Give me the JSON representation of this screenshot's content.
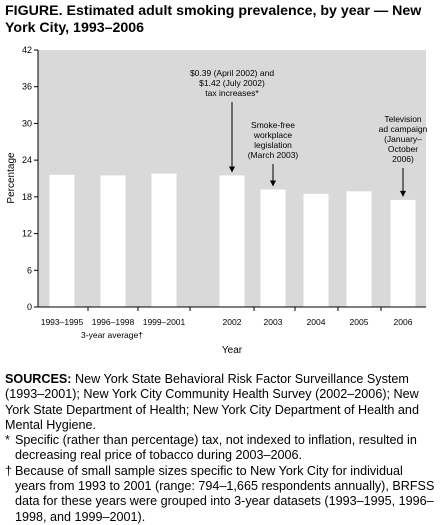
{
  "figure": {
    "label": "FIGURE.",
    "title": "Estimated adult smoking prevalence, by year — New York City, 1993–2006"
  },
  "chart_data": {
    "type": "bar",
    "categories": [
      "1993–1995",
      "1996–1998",
      "1999–2001",
      "2002",
      "2003",
      "2004",
      "2005",
      "2006"
    ],
    "values": [
      21.6,
      21.5,
      21.8,
      21.5,
      19.2,
      18.5,
      18.9,
      17.5
    ],
    "xlabel": "Year",
    "ylabel": "Percentage",
    "ylim": [
      0,
      42
    ],
    "yticks": [
      0,
      6,
      12,
      18,
      24,
      30,
      36,
      42
    ],
    "group_label": "3-year average†",
    "bar_color": "#ffffff",
    "plot_color": "#d9d9d9",
    "annotations": [
      {
        "category": "2002",
        "text": [
          "$0.39 (April 2002) and",
          "$1.42 (July 2002)",
          "tax increases*"
        ]
      },
      {
        "category": "2003",
        "text": [
          "Smoke-free",
          "workplace",
          "legislation",
          "(March 2003)"
        ]
      },
      {
        "category": "2006",
        "text": [
          "Television",
          "ad campaign",
          "(January–",
          "October",
          "2006)"
        ]
      }
    ]
  },
  "sources": {
    "label": "SOURCES:",
    "text": "New York State Behavioral Risk Factor Surveillance System (1993–2001); New York City Community Health Survey (2002–2006); New York State Department of Health; New York City Department of Health and Mental Hygiene."
  },
  "footnotes": [
    {
      "mark": "*",
      "text": "Specific (rather than percentage) tax, not indexed to inflation, resulted in decreasing real price of tobacco during 2003–2006."
    },
    {
      "mark": "†",
      "text": "Because of small sample sizes specific to New York City for individual years from 1993 to 2001 (range: 794–1,665 respondents annually), BRFSS data for these years were grouped into 3-year datasets (1993–1995, 1996–1998, and 1999–2001)."
    }
  ]
}
